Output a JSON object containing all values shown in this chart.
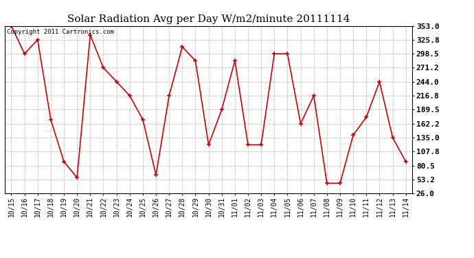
{
  "title": "Solar Radiation Avg per Day W/m2/minute 20111114",
  "copyright": "Copyright 2011 Cartronics.com",
  "dates": [
    "10/15",
    "10/16",
    "10/17",
    "10/18",
    "10/19",
    "10/20",
    "10/21",
    "10/22",
    "10/23",
    "10/24",
    "10/25",
    "10/26",
    "10/27",
    "10/28",
    "10/29",
    "10/30",
    "10/31",
    "11/01",
    "11/02",
    "11/03",
    "11/04",
    "11/05",
    "11/06",
    "11/07",
    "11/08",
    "11/09",
    "11/10",
    "11/11",
    "11/12",
    "11/13",
    "11/14"
  ],
  "values": [
    353.0,
    298.5,
    325.8,
    170.0,
    88.0,
    57.0,
    335.0,
    271.2,
    244.0,
    216.8,
    170.0,
    62.0,
    216.8,
    312.0,
    285.0,
    121.0,
    189.5,
    285.0,
    121.0,
    121.0,
    298.5,
    298.5,
    162.2,
    216.8,
    46.0,
    46.0,
    140.0,
    175.0,
    244.0,
    135.0,
    88.0
  ],
  "y_ticks": [
    26.0,
    53.2,
    80.5,
    107.8,
    135.0,
    162.2,
    189.5,
    216.8,
    244.0,
    271.2,
    298.5,
    325.8,
    353.0
  ],
  "line_color": "#cc0000",
  "marker_color": "#cc0000",
  "bg_color": "#ffffff",
  "grid_color": "#b0b0b0",
  "ylim": [
    26.0,
    353.0
  ],
  "title_fontsize": 11,
  "tick_fontsize": 7,
  "ytick_fontsize": 8
}
